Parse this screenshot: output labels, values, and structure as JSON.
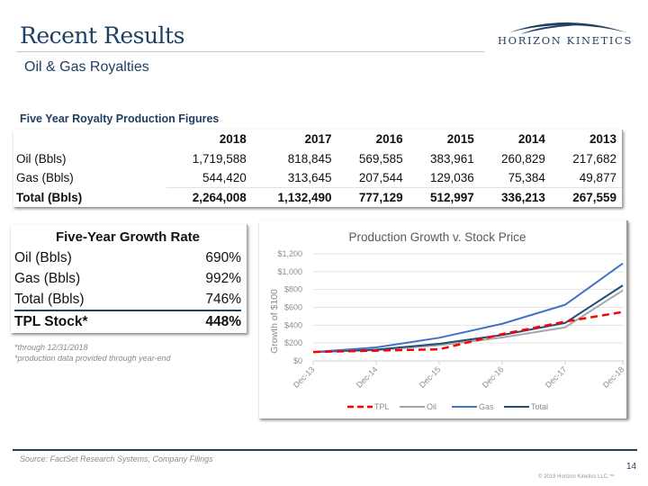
{
  "header": {
    "title": "Recent Results",
    "subtitle": "Oil & Gas Royalties",
    "logo_text": "HORIZON KINETICS"
  },
  "production_table": {
    "title": "Five Year Royalty Production Figures",
    "columns": [
      "",
      "2018",
      "2017",
      "2016",
      "2015",
      "2014",
      "2013"
    ],
    "rows": [
      {
        "label": "Oil (Bbls)",
        "values": [
          "1,719,588",
          "818,845",
          "569,585",
          "383,961",
          "260,829",
          "217,682"
        ]
      },
      {
        "label": "Gas (Bbls)",
        "values": [
          "544,420",
          "313,645",
          "207,544",
          "129,036",
          "75,384",
          "49,877"
        ]
      },
      {
        "label": "Total (Bbls)",
        "values": [
          "2,264,008",
          "1,132,490",
          "777,129",
          "512,997",
          "336,213",
          "267,559"
        ]
      }
    ]
  },
  "growth_table": {
    "title": "Five-Year Growth Rate",
    "rows": [
      {
        "label": "Oil (Bbls)",
        "value": "690%"
      },
      {
        "label": "Gas (Bbls)",
        "value": "992%"
      },
      {
        "label": "Total (Bbls)",
        "value": "746%"
      },
      {
        "label": "TPL Stock*",
        "value": "448%"
      }
    ],
    "notes": [
      "*through 12/31/2018",
      "*production data provided through year-end"
    ]
  },
  "chart_data": {
    "type": "line",
    "title": "Production Growth v. Stock Price",
    "xlabel": "",
    "ylabel": "Growth of $100",
    "categories": [
      "Dec-13",
      "Dec-14",
      "Dec-15",
      "Dec-16",
      "Dec-17",
      "Dec-18"
    ],
    "ylim": [
      0,
      1200
    ],
    "yticks": [
      0,
      200,
      400,
      600,
      800,
      1000,
      1200
    ],
    "ytick_labels": [
      "$0",
      "$200",
      "$400",
      "$600",
      "$800",
      "$1,000",
      "$1,200"
    ],
    "grid": true,
    "legend": "bottom",
    "series": [
      {
        "name": "TPL",
        "color": "#ff0000",
        "dashed": true,
        "values": [
          100,
          115,
          130,
          300,
          440,
          548
        ]
      },
      {
        "name": "Oil",
        "color": "#a6a6a6",
        "dashed": false,
        "values": [
          100,
          120,
          176,
          262,
          376,
          790
        ]
      },
      {
        "name": "Gas",
        "color": "#4472c4",
        "dashed": false,
        "values": [
          100,
          151,
          259,
          416,
          629,
          1092
        ]
      },
      {
        "name": "Total",
        "color": "#1f4e79",
        "dashed": false,
        "values": [
          100,
          126,
          192,
          290,
          426,
          846
        ]
      }
    ]
  },
  "footer": {
    "source": "Source: FactSet Research Systems, Company Filings",
    "page_number": "14",
    "copyright": "© 2019 Horizon Kinetics LLC.™"
  }
}
